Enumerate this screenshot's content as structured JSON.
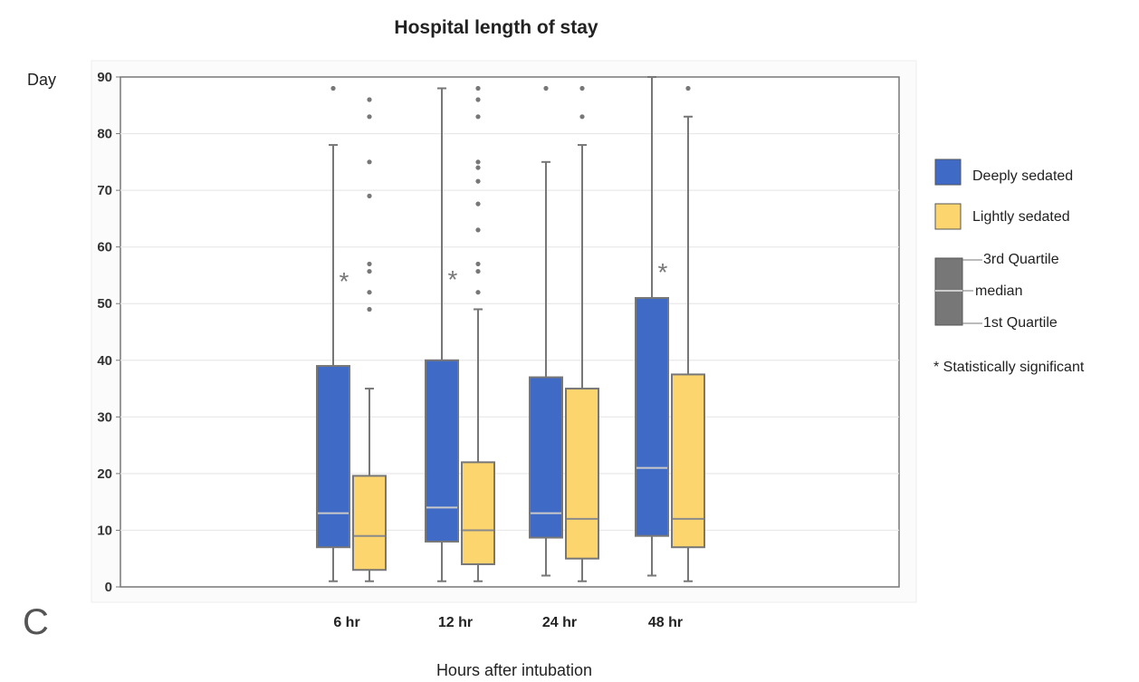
{
  "chart_data": {
    "type": "box",
    "title": "Hospital length of stay",
    "panel_label": "C",
    "ylabel": "Day",
    "xlabel": "Hours after intubation",
    "ylim": [
      0,
      90
    ],
    "yticks": [
      "0",
      "10",
      "20",
      "30",
      "40",
      "50",
      "60",
      "70",
      "80",
      "90"
    ],
    "categories": [
      "6 hr",
      "12 hr",
      "24 hr",
      "48 hr"
    ],
    "grid": true,
    "legend_position": "right",
    "series": [
      {
        "name": "Deeply sedated",
        "color": "#3f6ac6",
        "boxes": [
          {
            "min": 1,
            "q1": 7,
            "median": 13,
            "q3": 39,
            "max": 78,
            "outliers": [
              88
            ]
          },
          {
            "min": 1,
            "q1": 8,
            "median": 14,
            "q3": 40,
            "max": 88,
            "outliers": []
          },
          {
            "min": 2,
            "q1": 8.7,
            "median": 13,
            "q3": 37,
            "max": 75,
            "outliers": [
              88
            ]
          },
          {
            "min": 2,
            "q1": 9,
            "median": 21,
            "q3": 51,
            "max": 90,
            "outliers": []
          }
        ]
      },
      {
        "name": "Lightly sedated",
        "color": "#fcd56e",
        "boxes": [
          {
            "min": 1,
            "q1": 3,
            "median": 9,
            "q3": 19.6,
            "max": 35,
            "outliers": [
              49,
              52,
              55.7,
              57,
              69,
              75,
              83,
              86
            ]
          },
          {
            "min": 1,
            "q1": 4,
            "median": 10,
            "q3": 22,
            "max": 49,
            "outliers": [
              52,
              55.7,
              57,
              63,
              67.6,
              71.6,
              74,
              75,
              83,
              86,
              88
            ]
          },
          {
            "min": 1,
            "q1": 5,
            "median": 12,
            "q3": 35,
            "max": 78,
            "outliers": [
              83,
              88
            ]
          },
          {
            "min": 1,
            "q1": 7,
            "median": 12,
            "q3": 37.5,
            "max": 83,
            "outliers": [
              88
            ]
          }
        ]
      }
    ],
    "significance_marker": "*",
    "significant_categories": [
      "6 hr",
      "12 hr",
      "48 hr"
    ],
    "legend": {
      "items": [
        "Deeply sedated",
        "Lightly sedated"
      ],
      "key_labels": {
        "q3": "3rd Quartile",
        "median": "median",
        "q1": "1st Quartile"
      },
      "note": "* Statistically significant"
    }
  }
}
